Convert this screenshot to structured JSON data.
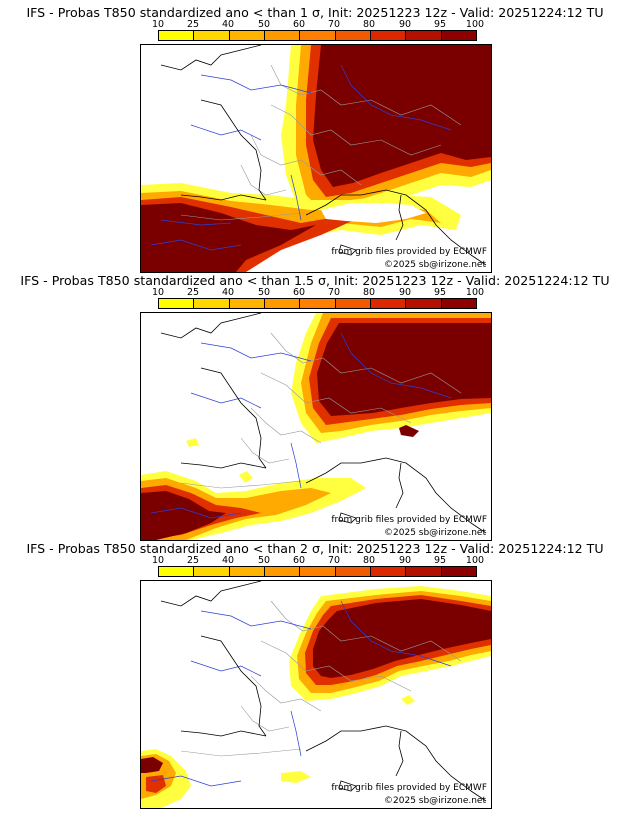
{
  "colorbar": {
    "labels": [
      "10",
      "25",
      "40",
      "50",
      "60",
      "70",
      "80",
      "90",
      "95",
      "100"
    ],
    "colors": [
      "#ffff00",
      "#ffd700",
      "#ffb400",
      "#ff9900",
      "#ff8000",
      "#f05a00",
      "#dc2800",
      "#b41000",
      "#8c0000"
    ]
  },
  "map_colors": {
    "low": "#ffff40",
    "mid": "#ffaa00",
    "high": "#e03000",
    "max": "#7a0000",
    "coast": "#000000",
    "rivers": "#2b3fd8",
    "borders": "#999999"
  },
  "panels": [
    {
      "title": "IFS - Probas T850  standardized ano < than 1 σ, Init: 20251223 12z - Valid: 20251224:12 TU",
      "credit_grib": "from grib files provided by ECMWF",
      "credit_copy": "©2025 sb@irizone.net"
    },
    {
      "title": "IFS - Probas T850  standardized ano < than 1.5 σ, Init: 20251223 12z - Valid: 20251224:12 TU",
      "credit_grib": "from grib files provided by ECMWF",
      "credit_copy": "©2025 sb@irizone.net"
    },
    {
      "title": "IFS - Probas T850  standardized ano < than 2 σ, Init: 20251223 12z - Valid: 20251224:12 TU",
      "credit_grib": "from grib files provided by ECMWF",
      "credit_copy": "©2025 sb@irizone.net"
    }
  ]
}
